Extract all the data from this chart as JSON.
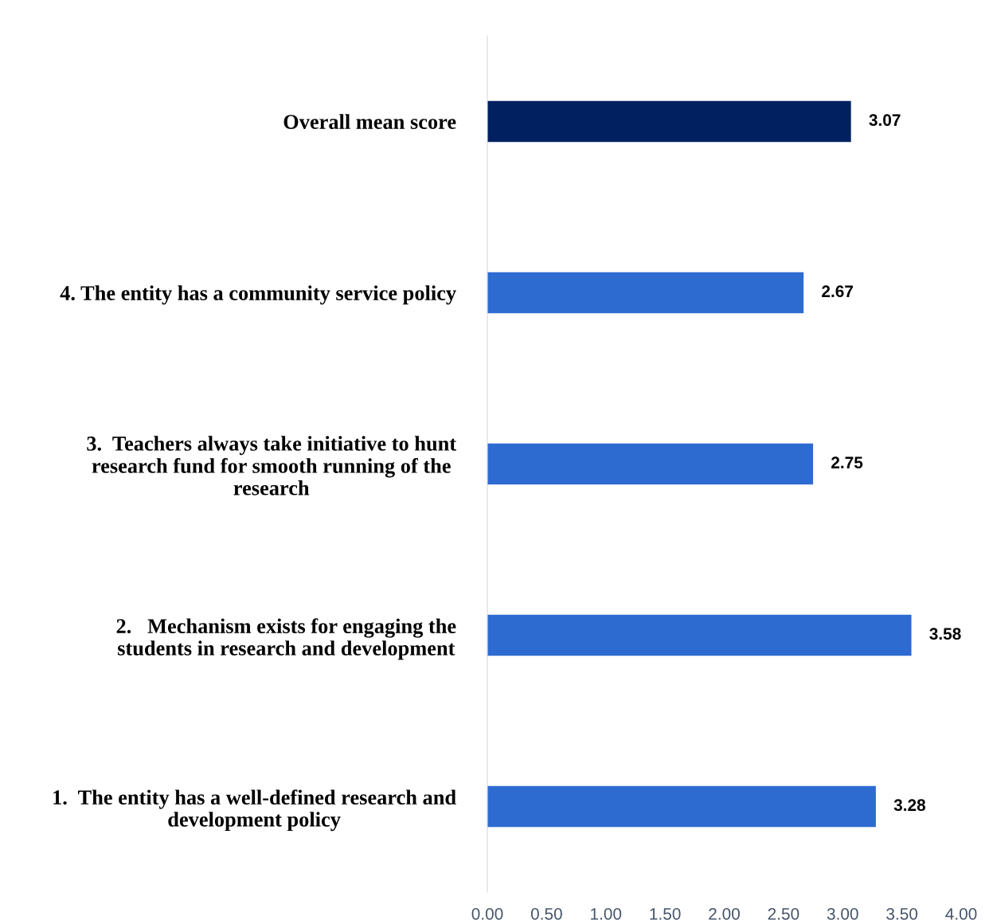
{
  "chart_data": {
    "type": "bar",
    "orientation": "horizontal",
    "categories": [
      "Overall mean score",
      "4. The entity has a community service policy",
      "3.  Teachers always take initiative to hunt\nresearch fund for smooth running of the\nresearch",
      "2.   Mechanism exists for engaging the\nstudents in research and development",
      "1.  The entity has a well-defined research and\ndevelopment policy"
    ],
    "values": [
      3.07,
      2.67,
      2.75,
      3.58,
      3.28
    ],
    "colors": [
      "#002060",
      "#2e6bd1",
      "#2e6bd1",
      "#2e6bd1",
      "#2e6bd1"
    ],
    "xlim": [
      0,
      4
    ],
    "xticks": [
      {
        "value": 0,
        "label": "0.00"
      },
      {
        "value": 0.5,
        "label": "0.50"
      },
      {
        "value": 1,
        "label": "1.00"
      },
      {
        "value": 1.5,
        "label": "1.50"
      },
      {
        "value": 2,
        "label": "2.00"
      },
      {
        "value": 2.5,
        "label": "2.50"
      },
      {
        "value": 3,
        "label": "3.00"
      },
      {
        "value": 3.5,
        "label": "3.50"
      },
      {
        "value": 4,
        "label": "4.00"
      }
    ],
    "data_labels": true,
    "grid": false,
    "legend": false
  }
}
